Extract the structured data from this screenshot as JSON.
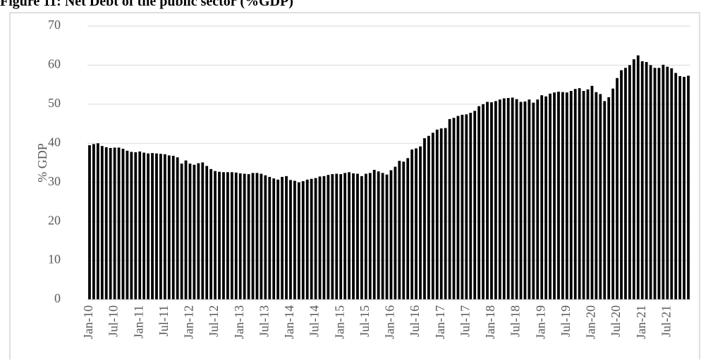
{
  "chart_data": {
    "type": "bar",
    "title": "Figure 11: Net Debt of the public sector (%GDP)",
    "y_label": "% GDP",
    "categories": [
      "Jan-10",
      null,
      null,
      null,
      null,
      null,
      "Jul-10",
      null,
      null,
      null,
      null,
      null,
      "Jan-11",
      null,
      null,
      null,
      null,
      null,
      "Jul-11",
      null,
      null,
      null,
      null,
      null,
      "Jan-12",
      null,
      null,
      null,
      null,
      null,
      "Jul-12",
      null,
      null,
      null,
      null,
      null,
      "Jan-13",
      null,
      null,
      null,
      null,
      null,
      "Jul-13",
      null,
      null,
      null,
      null,
      null,
      "Jan-14",
      null,
      null,
      null,
      null,
      null,
      "Jul-14",
      null,
      null,
      null,
      null,
      null,
      "Jan-15",
      null,
      null,
      null,
      null,
      null,
      "Jul-15",
      null,
      null,
      null,
      null,
      null,
      "Jan-16",
      null,
      null,
      null,
      null,
      null,
      "Jul-16",
      null,
      null,
      null,
      null,
      null,
      "Jan-17",
      null,
      null,
      null,
      null,
      null,
      "Jul-17",
      null,
      null,
      null,
      null,
      null,
      "Jan-18",
      null,
      null,
      null,
      null,
      null,
      "Jul-18",
      null,
      null,
      null,
      null,
      null,
      "Jan-19",
      null,
      null,
      null,
      null,
      null,
      "Jul-19",
      null,
      null,
      null,
      null,
      null,
      "Jan-20",
      null,
      null,
      null,
      null,
      null,
      "Jul-20",
      null,
      null,
      null,
      null,
      null,
      "Jan-21",
      null,
      null,
      null,
      null,
      null,
      "Jul-21",
      null,
      null,
      null,
      null,
      null
    ],
    "values": [
      39.5,
      39.8,
      40,
      39.3,
      39,
      38.8,
      38.9,
      38.9,
      38.6,
      38.1,
      37.8,
      37.7,
      37.9,
      37.6,
      37.4,
      37.5,
      37.4,
      37.3,
      37.2,
      36.9,
      36.8,
      36.4,
      34.8,
      35.6,
      34.8,
      34.5,
      34.9,
      35.1,
      34.2,
      33.4,
      32.9,
      32.7,
      32.6,
      32.6,
      32.6,
      32.5,
      32.3,
      32.2,
      32.1,
      32.4,
      32.4,
      32.2,
      31.8,
      31.4,
      31,
      30.7,
      31.4,
      31.6,
      30.6,
      30.4,
      30,
      30.3,
      30.7,
      30.9,
      31.1,
      31.5,
      31.6,
      31.9,
      32.1,
      32.2,
      32.1,
      32.4,
      32.6,
      32.3,
      32.2,
      31.6,
      32.2,
      32.4,
      33.2,
      32.8,
      32.4,
      32,
      33.1,
      34,
      35.5,
      35.3,
      36.2,
      38.4,
      38.7,
      39.2,
      41.3,
      41.9,
      42.7,
      43.5,
      43.8,
      43.9,
      46.2,
      46.5,
      47,
      47.3,
      47.4,
      47.8,
      48.3,
      49.5,
      50,
      50.6,
      50.5,
      50.8,
      51.2,
      51.5,
      51.6,
      51.7,
      51.3,
      50.6,
      50.7,
      51.2,
      50.4,
      51.2,
      52.3,
      52,
      52.7,
      53,
      53.2,
      53.1,
      53,
      53.4,
      53.9,
      54.1,
      53.4,
      53.8,
      54.7,
      53.1,
      52.6,
      50.8,
      51.8,
      54,
      56.7,
      58.7,
      59.3,
      60,
      61.5,
      62.5,
      61,
      60.8,
      60,
      59.3,
      59.3,
      60.1,
      59.6,
      59.2,
      58,
      57.2,
      57,
      57.3
    ],
    "color": "#000000",
    "ylim": [
      0,
      70
    ],
    "yticks": [
      0,
      10,
      20,
      30,
      40,
      50,
      60,
      70
    ],
    "grid": true
  }
}
